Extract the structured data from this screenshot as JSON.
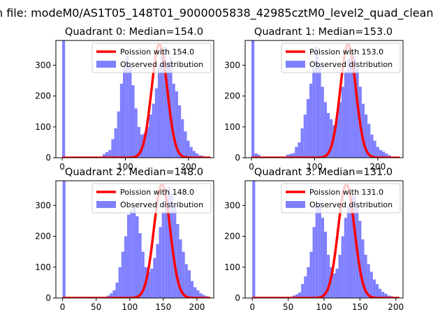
{
  "figure_title": "n file: modeM0/AS1T05_148T01_9000005838_42985cztM0_level2_quad_clean",
  "colors": {
    "hist": "#8080ff",
    "curve": "#ff0000"
  },
  "chart_data": [
    {
      "type": "bar+line",
      "title": "Quadrant 0: Median=154.0",
      "legend": [
        "Poission with 154.0",
        "Observed distribution"
      ],
      "legend_position": "top-right",
      "xlim": [
        -10,
        240
      ],
      "ylim": [
        0,
        380
      ],
      "xticks": [
        "0",
        "100",
        "200"
      ],
      "xtick_values": [
        0,
        100,
        200
      ],
      "yticks": [
        "0",
        "100",
        "200",
        "300"
      ],
      "ytick_values": [
        0,
        100,
        200,
        300
      ],
      "poisson_mean": 154.0,
      "poisson_peak": 368,
      "bin_width": 4.6,
      "bins": [
        {
          "x": 0,
          "y": 380
        },
        {
          "x": 4.6,
          "y": 0
        },
        {
          "x": 64,
          "y": 12
        },
        {
          "x": 68.6,
          "y": 18
        },
        {
          "x": 73.2,
          "y": 25
        },
        {
          "x": 77.8,
          "y": 60
        },
        {
          "x": 82.4,
          "y": 95
        },
        {
          "x": 87,
          "y": 150
        },
        {
          "x": 91.6,
          "y": 240
        },
        {
          "x": 96.2,
          "y": 300
        },
        {
          "x": 100.8,
          "y": 330
        },
        {
          "x": 105.4,
          "y": 300
        },
        {
          "x": 110,
          "y": 235
        },
        {
          "x": 114.6,
          "y": 160
        },
        {
          "x": 119.2,
          "y": 100
        },
        {
          "x": 123.8,
          "y": 75
        },
        {
          "x": 128.4,
          "y": 80
        },
        {
          "x": 133,
          "y": 100
        },
        {
          "x": 137.6,
          "y": 140
        },
        {
          "x": 142.2,
          "y": 175
        },
        {
          "x": 146.8,
          "y": 225
        },
        {
          "x": 151.4,
          "y": 300
        },
        {
          "x": 156,
          "y": 340
        },
        {
          "x": 160.6,
          "y": 360
        },
        {
          "x": 165.2,
          "y": 310
        },
        {
          "x": 169.8,
          "y": 325
        },
        {
          "x": 174.4,
          "y": 240
        },
        {
          "x": 179,
          "y": 215
        },
        {
          "x": 183.6,
          "y": 170
        },
        {
          "x": 188.2,
          "y": 125
        },
        {
          "x": 192.8,
          "y": 85
        },
        {
          "x": 197.4,
          "y": 55
        },
        {
          "x": 202,
          "y": 35
        },
        {
          "x": 206.6,
          "y": 22
        },
        {
          "x": 211.2,
          "y": 14
        },
        {
          "x": 215.8,
          "y": 8
        },
        {
          "x": 220.4,
          "y": 6
        }
      ]
    },
    {
      "type": "bar+line",
      "title": "Quadrant 1: Median=153.0",
      "legend": [
        "Poission with 153.0",
        "Observed distribution"
      ],
      "legend_position": "top-right",
      "xlim": [
        -10,
        240
      ],
      "ylim": [
        0,
        380
      ],
      "xticks": [
        "0",
        "100",
        "200"
      ],
      "xtick_values": [
        0,
        100,
        200
      ],
      "yticks": [
        "0",
        "100",
        "200",
        "300"
      ],
      "ytick_values": [
        0,
        100,
        200,
        300
      ],
      "poisson_mean": 153.0,
      "poisson_peak": 368,
      "bin_width": 4.6,
      "bins": [
        {
          "x": 0,
          "y": 380
        },
        {
          "x": 4.6,
          "y": 14
        },
        {
          "x": 9.2,
          "y": 10
        },
        {
          "x": 55,
          "y": 10
        },
        {
          "x": 59.6,
          "y": 12
        },
        {
          "x": 64.2,
          "y": 15
        },
        {
          "x": 68.8,
          "y": 35
        },
        {
          "x": 73.4,
          "y": 50
        },
        {
          "x": 78,
          "y": 95
        },
        {
          "x": 82.6,
          "y": 140
        },
        {
          "x": 87.2,
          "y": 190
        },
        {
          "x": 91.8,
          "y": 240
        },
        {
          "x": 96.4,
          "y": 290
        },
        {
          "x": 101,
          "y": 360
        },
        {
          "x": 105.6,
          "y": 300
        },
        {
          "x": 110.2,
          "y": 230
        },
        {
          "x": 114.8,
          "y": 180
        },
        {
          "x": 119.4,
          "y": 145
        },
        {
          "x": 124,
          "y": 125
        },
        {
          "x": 128.6,
          "y": 105
        },
        {
          "x": 133.2,
          "y": 130
        },
        {
          "x": 137.8,
          "y": 180
        },
        {
          "x": 142.4,
          "y": 230
        },
        {
          "x": 147,
          "y": 280
        },
        {
          "x": 151.6,
          "y": 320
        },
        {
          "x": 156.2,
          "y": 345
        },
        {
          "x": 160.8,
          "y": 330
        },
        {
          "x": 165.4,
          "y": 290
        },
        {
          "x": 170,
          "y": 230
        },
        {
          "x": 174.6,
          "y": 175
        },
        {
          "x": 179.2,
          "y": 140
        },
        {
          "x": 183.8,
          "y": 110
        },
        {
          "x": 188.4,
          "y": 75
        },
        {
          "x": 193,
          "y": 55
        },
        {
          "x": 197.6,
          "y": 35
        },
        {
          "x": 202.2,
          "y": 25
        },
        {
          "x": 206.8,
          "y": 20
        },
        {
          "x": 211.4,
          "y": 14
        },
        {
          "x": 216,
          "y": 8
        }
      ]
    },
    {
      "type": "bar+line",
      "title": "Quadrant 2: Median=148.0",
      "legend": [
        "Poission with 148.0",
        "Observed distribution"
      ],
      "legend_position": "top-right",
      "xlim": [
        -10,
        225
      ],
      "ylim": [
        0,
        380
      ],
      "xticks": [
        "0",
        "50",
        "100",
        "150",
        "200"
      ],
      "xtick_values": [
        0,
        50,
        100,
        150,
        200
      ],
      "yticks": [
        "0",
        "100",
        "200",
        "300"
      ],
      "ytick_values": [
        0,
        100,
        200,
        300
      ],
      "poisson_mean": 148.0,
      "poisson_peak": 368,
      "bin_width": 4.3,
      "bins": [
        {
          "x": 0,
          "y": 380
        },
        {
          "x": 66,
          "y": 8
        },
        {
          "x": 70.3,
          "y": 15
        },
        {
          "x": 74.6,
          "y": 25
        },
        {
          "x": 78.9,
          "y": 50
        },
        {
          "x": 83.2,
          "y": 100
        },
        {
          "x": 87.5,
          "y": 150
        },
        {
          "x": 91.8,
          "y": 200
        },
        {
          "x": 96.1,
          "y": 270
        },
        {
          "x": 100.4,
          "y": 285
        },
        {
          "x": 104.7,
          "y": 300
        },
        {
          "x": 109,
          "y": 265
        },
        {
          "x": 113.3,
          "y": 210
        },
        {
          "x": 117.6,
          "y": 150
        },
        {
          "x": 121.9,
          "y": 100
        },
        {
          "x": 126.2,
          "y": 85
        },
        {
          "x": 130.5,
          "y": 95
        },
        {
          "x": 134.8,
          "y": 130
        },
        {
          "x": 139.1,
          "y": 175
        },
        {
          "x": 143.4,
          "y": 230
        },
        {
          "x": 147.7,
          "y": 280
        },
        {
          "x": 152,
          "y": 330
        },
        {
          "x": 156.3,
          "y": 360
        },
        {
          "x": 160.6,
          "y": 340
        },
        {
          "x": 164.9,
          "y": 300
        },
        {
          "x": 169.2,
          "y": 240
        },
        {
          "x": 173.5,
          "y": 190
        },
        {
          "x": 177.8,
          "y": 150
        },
        {
          "x": 182.1,
          "y": 110
        },
        {
          "x": 186.4,
          "y": 90
        },
        {
          "x": 190.7,
          "y": 55
        },
        {
          "x": 195,
          "y": 35
        },
        {
          "x": 199.3,
          "y": 25
        },
        {
          "x": 203.6,
          "y": 15
        },
        {
          "x": 207.9,
          "y": 10
        },
        {
          "x": 212.2,
          "y": 6
        }
      ]
    },
    {
      "type": "bar+line",
      "title": "Quadrant 3: Median=131.0",
      "legend": [
        "Poission with 131.0",
        "Observed distribution"
      ],
      "legend_position": "top-right",
      "xlim": [
        -10,
        210
      ],
      "ylim": [
        0,
        380
      ],
      "xticks": [
        "0",
        "50",
        "100",
        "150",
        "200"
      ],
      "xtick_values": [
        0,
        50,
        100,
        150,
        200
      ],
      "yticks": [
        "0",
        "100",
        "200",
        "300"
      ],
      "ytick_values": [
        0,
        100,
        200,
        300
      ],
      "poisson_mean": 131.0,
      "poisson_peak": 368,
      "bin_width": 4.0,
      "bins": [
        {
          "x": 0,
          "y": 380
        },
        {
          "x": 56,
          "y": 8
        },
        {
          "x": 60,
          "y": 12
        },
        {
          "x": 64,
          "y": 18
        },
        {
          "x": 68,
          "y": 45
        },
        {
          "x": 72,
          "y": 70
        },
        {
          "x": 76,
          "y": 100
        },
        {
          "x": 80,
          "y": 150
        },
        {
          "x": 84,
          "y": 230
        },
        {
          "x": 88,
          "y": 300
        },
        {
          "x": 92,
          "y": 310
        },
        {
          "x": 96,
          "y": 260
        },
        {
          "x": 100,
          "y": 215
        },
        {
          "x": 104,
          "y": 140
        },
        {
          "x": 108,
          "y": 100
        },
        {
          "x": 112,
          "y": 80
        },
        {
          "x": 116,
          "y": 95
        },
        {
          "x": 120,
          "y": 140
        },
        {
          "x": 124,
          "y": 200
        },
        {
          "x": 128,
          "y": 260
        },
        {
          "x": 132,
          "y": 300
        },
        {
          "x": 136,
          "y": 340
        },
        {
          "x": 140,
          "y": 330
        },
        {
          "x": 144,
          "y": 295
        },
        {
          "x": 148,
          "y": 250
        },
        {
          "x": 152,
          "y": 190
        },
        {
          "x": 156,
          "y": 140
        },
        {
          "x": 160,
          "y": 110
        },
        {
          "x": 164,
          "y": 85
        },
        {
          "x": 168,
          "y": 60
        },
        {
          "x": 172,
          "y": 45
        },
        {
          "x": 176,
          "y": 30
        },
        {
          "x": 180,
          "y": 20
        },
        {
          "x": 184,
          "y": 14
        },
        {
          "x": 188,
          "y": 8
        },
        {
          "x": 192,
          "y": 6
        }
      ]
    }
  ]
}
